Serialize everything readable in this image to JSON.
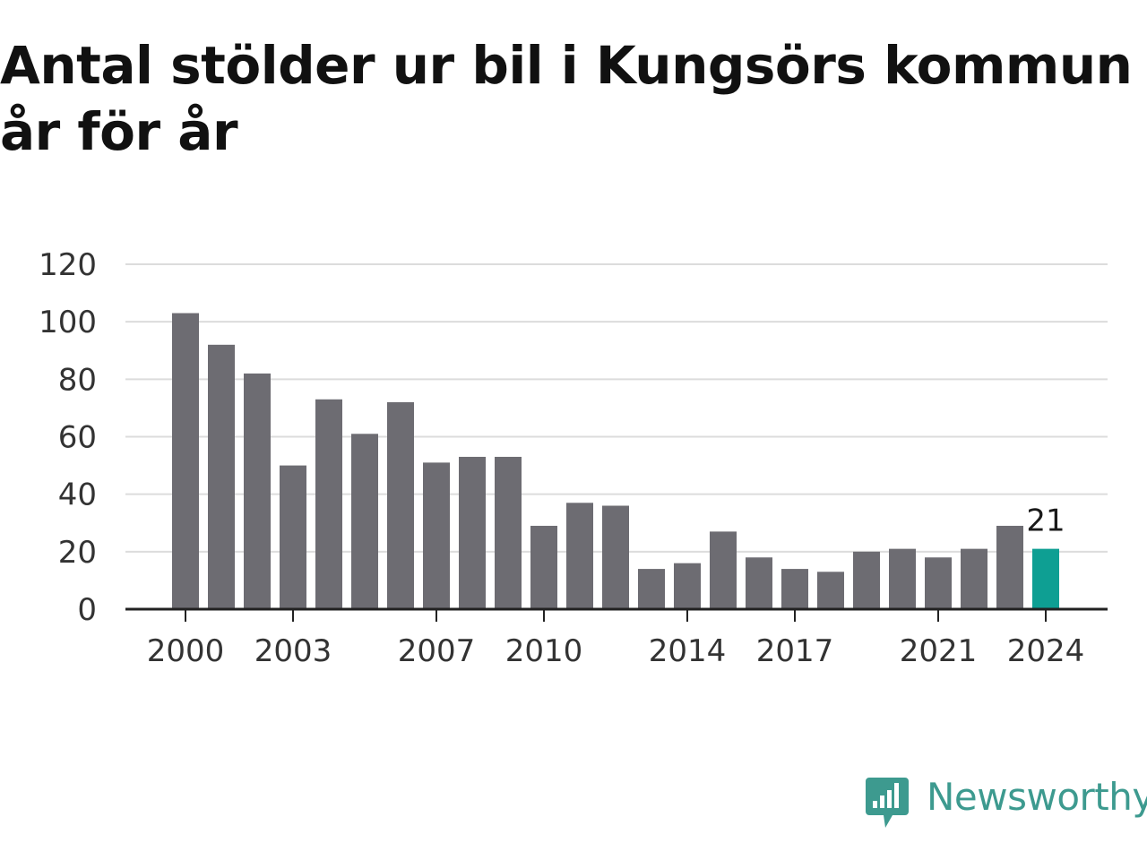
{
  "header": {
    "title_line1": "Antal stölder ur bil i Kungsörs kommun",
    "title_line2": "år för år"
  },
  "brand": {
    "name": "Newsworthy",
    "color": "#3d9a8f",
    "icon": "newsworthy-logo-icon"
  },
  "colors": {
    "bar": "#6d6c72",
    "highlight": "#0e9f93",
    "grid": "#dcdcdc",
    "axis": "#222222"
  },
  "chart_data": {
    "type": "bar",
    "title": "Antal stölder ur bil i Kungsörs kommun år för år",
    "xlabel": "",
    "ylabel": "",
    "categories": [
      "2000",
      "2001",
      "2002",
      "2003",
      "2004",
      "2005",
      "2006",
      "2007",
      "2008",
      "2009",
      "2010",
      "2011",
      "2012",
      "2013",
      "2014",
      "2015",
      "2016",
      "2017",
      "2018",
      "2019",
      "2020",
      "2021",
      "2022",
      "2023",
      "2024"
    ],
    "values": [
      103,
      92,
      82,
      50,
      73,
      61,
      72,
      51,
      53,
      53,
      29,
      37,
      36,
      14,
      16,
      27,
      18,
      14,
      13,
      20,
      21,
      18,
      21,
      29,
      21
    ],
    "ylim": [
      0,
      120
    ],
    "yticks": [
      "0",
      "20",
      "40",
      "60",
      "80",
      "100",
      "120"
    ],
    "xticks": [
      "2000",
      "2003",
      "2007",
      "2010",
      "2014",
      "2017",
      "2021",
      "2024"
    ],
    "highlight": {
      "category": "2024",
      "label": "21"
    },
    "grid": true,
    "legend": "none"
  }
}
